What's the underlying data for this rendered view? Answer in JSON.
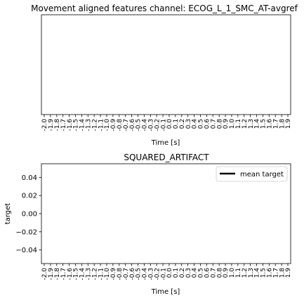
{
  "chart_data": [
    {
      "type": "line",
      "title": "Movement aligned features channel: ECOG_L_1_SMC_AT-avgref",
      "xlabel": "Time [s]",
      "ylabel": "",
      "x_ticks": [
        "-2.0",
        "-1.9",
        "-1.8",
        "-1.7",
        "-1.6",
        "-1.5",
        "-1.4",
        "-1.3",
        "-1.2",
        "-1.1",
        "-1.0",
        "-0.9",
        "-0.8",
        "-0.7",
        "-0.6",
        "-0.5",
        "-0.4",
        "-0.3",
        "-0.2",
        "-0.1",
        "0.0",
        "0.1",
        "0.2",
        "0.3",
        "0.4",
        "0.5",
        "0.6",
        "0.7",
        "0.8",
        "0.9",
        "1.0",
        "1.1",
        "1.2",
        "1.3",
        "1.4",
        "1.5",
        "1.6",
        "1.7",
        "1.8",
        "1.9"
      ],
      "y_ticks": [],
      "series": [],
      "grid": false
    },
    {
      "type": "line",
      "title": "SQUARED_ARTIFACT",
      "xlabel": "Time [s]",
      "ylabel": "target",
      "x_ticks": [
        "-2.0",
        "-1.9",
        "-1.8",
        "-1.7",
        "-1.6",
        "-1.5",
        "-1.4",
        "-1.3",
        "-1.2",
        "-1.1",
        "-1.0",
        "-0.9",
        "-0.8",
        "-0.7",
        "-0.6",
        "-0.5",
        "-0.4",
        "-0.3",
        "-0.2",
        "-0.1",
        "0.0",
        "0.1",
        "0.2",
        "0.3",
        "0.4",
        "0.5",
        "0.6",
        "0.7",
        "0.8",
        "0.9",
        "1.0",
        "1.1",
        "1.2",
        "1.3",
        "1.4",
        "1.5",
        "1.6",
        "1.7",
        "1.8",
        "1.9"
      ],
      "y_ticks": [
        "0.04",
        "0.02",
        "0.00",
        "−0.02",
        "−0.04"
      ],
      "ylim": [
        -0.055,
        0.055
      ],
      "series": [
        {
          "name": "mean target",
          "color": "#000000",
          "values": []
        }
      ],
      "legend": "top-right",
      "grid": false
    }
  ]
}
